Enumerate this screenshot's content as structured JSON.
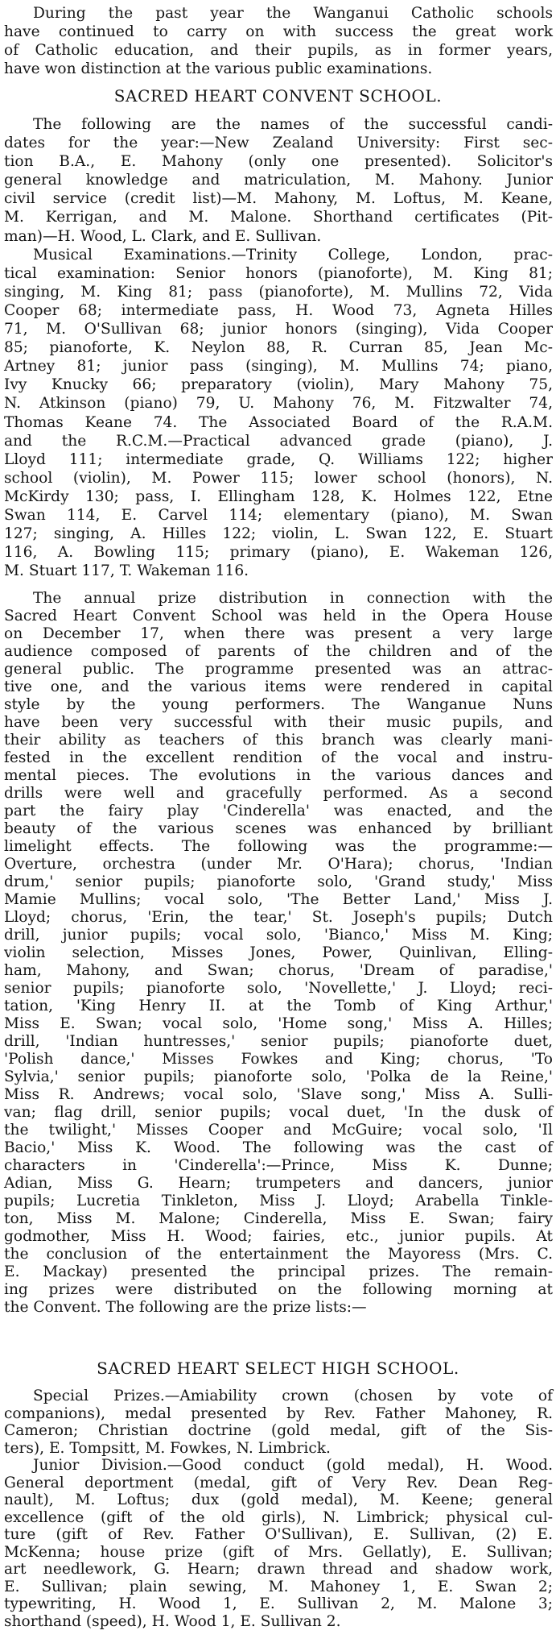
{
  "article": {
    "intro": [
      "During the past year the Wanganui Catholic schools",
      "have continued to carry on with success the great work",
      "of Catholic education, and their pupils, as in former years,",
      "have won distinction at the various public examinations."
    ],
    "heading_convent": "SACRED HEART CONVENT SCHOOL.",
    "candidates": [
      "The following are the names of the successful candi-",
      "dates for the year:—New Zealand University: First sec-",
      "tion B.A., E. Mahony (only one presented). Solicitor's",
      "general knowledge and matriculation, M. Mahony. Junior",
      "civil service (credit list)—M. Mahony, M. Loftus, M. Keane,",
      "M. Kerrigan, and M. Malone. Shorthand certificates (Pit-",
      "man)—H. Wood, L. Clark, and E. Sullivan."
    ],
    "musical": [
      "Musical Examinations.—Trinity College, London, prac-",
      "tical examination: Senior honors (pianoforte), M. King 81;",
      "singing, M. King 81; pass (pianoforte), M. Mullins 72, Vida",
      "Cooper 68; intermediate pass, H. Wood 73, Agneta Hilles",
      "71, M. O'Sullivan 68; junior honors (singing), Vida Cooper",
      "85; pianoforte, K. Neylon 88, R. Curran 85, Jean Mc-",
      "Artney 81; junior pass (singing), M. Mullins 74; piano,",
      "Ivy Knucky 66; preparatory (violin), Mary Mahony 75,",
      "N. Atkinson (piano) 79, U. Mahony 76, M. Fitzwalter 74,",
      "Thomas Keane 74. The Associated Board of the R.A.M.",
      "and the R.C.M.—Practical advanced grade (piano), J.",
      "Lloyd 111; intermediate grade, Q. Williams 122; higher",
      "school (violin), M. Power 115; lower school (honors), N.",
      "McKirdy 130; pass, I. Ellingham 128, K. Holmes 122, Etne",
      "Swan 114, E. Carvel 114; elementary (piano), M. Swan",
      "127; singing, A. Hilles 122; violin, L. Swan 122, E. Stuart",
      "116, A. Bowling 115; primary (piano), E. Wakeman 126,",
      "M. Stuart 117, T. Wakeman 116."
    ],
    "prize_distribution": [
      "The annual prize distribution in connection with the",
      "Sacred Heart Convent School was held in the Opera House",
      "on December 17, when there was present a very large",
      "audience composed of parents of the children and of the",
      "general public. The programme presented was an attrac-",
      "tive one, and the various items were rendered in capital",
      "style by the young performers. The Wanganue Nuns",
      "have been very successful with their music pupils, and",
      "their ability as teachers of this branch was clearly mani-",
      "fested in the excellent rendition of the vocal and instru-",
      "mental pieces. The evolutions in the various dances and",
      "drills were well and gracefully performed. As a second",
      "part the fairy play 'Cinderella' was enacted, and the",
      "beauty of the various scenes was enhanced by brilliant",
      "limelight effects. The following was the programme:—",
      "Overture, orchestra (under Mr. O'Hara); chorus, 'Indian",
      "drum,' senior pupils; pianoforte solo, 'Grand study,' Miss",
      "Mamie Mullins; vocal solo, 'The Better Land,' Miss J.",
      "Lloyd; chorus, 'Erin, the tear,' St. Joseph's pupils; Dutch",
      "drill, junior pupils; vocal solo, 'Bianco,' Miss M. King;",
      "violin selection, Misses Jones, Power, Quinlivan, Elling-",
      "ham, Mahony, and Swan; chorus, 'Dream of paradise,'",
      "senior pupils; pianoforte solo, 'Novellette,' J. Lloyd; reci-",
      "tation, 'King Henry II. at the Tomb of King Arthur,'",
      "Miss E. Swan; vocal solo, 'Home song,' Miss A. Hilles;",
      "drill, 'Indian huntresses,' senior pupils; pianoforte duet,",
      "'Polish dance,' Misses Fowkes and King; chorus, 'To",
      "Sylvia,' senior pupils; pianoforte solo, 'Polka de la Reine,'",
      "Miss R. Andrews; vocal solo, 'Slave song,' Miss A. Sulli-",
      "van; flag drill, senior pupils; vocal duet, 'In the dusk of",
      "the twilight,' Misses Cooper and McGuire; vocal solo, 'Il",
      "Bacio,' Miss K. Wood. The following was the cast of",
      "characters in 'Cinderella':—Prince, Miss K. Dunne;",
      "Adian, Miss G. Hearn; trumpeters and dancers, junior",
      "pupils; Lucretia Tinkleton, Miss J. Lloyd; Arabella Tinkle-",
      "ton, Miss M. Malone; Cinderella, Miss E. Swan; fairy",
      "godmother, Miss H. Wood; fairies, etc., junior pupils. At",
      "the conclusion of the entertainment the Mayoress (Mrs. C.",
      "E. Mackay) presented the principal prizes. The remain-",
      "ing prizes were distributed on the following morning at",
      "the Convent. The following are the prize lists:—"
    ],
    "heading_high_school": "SACRED HEART SELECT HIGH SCHOOL.",
    "special_prizes": [
      "Special Prizes.—Amiability crown (chosen by vote of",
      "companions), medal presented by Rev. Father Mahoney, R.",
      "Cameron; Christian doctrine (gold medal, gift of the Sis-",
      "ters), E. Tompsitt, M. Fowkes, N. Limbrick."
    ],
    "junior_division": [
      "Junior Division.—Good conduct (gold medal), H. Wood.",
      "General deportment (medal, gift of Very Rev. Dean Reg-",
      "nault), M. Loftus; dux (gold medal), M. Keene; general",
      "excellence (gift of the old girls), N. Limbrick; physical cul-",
      "ture (gift of Rev. Father O'Sullivan), E. Sullivan, (2) E.",
      "McKenna; house prize (gift of Mrs. Gellatly), E. Sullivan;",
      "art needlework, G. Hearn; drawn thread and shadow work,",
      "E. Sullivan; plain sewing, M. Mahoney 1, E. Swan 2;",
      "typewriting, H. Wood 1, E. Sullivan 2, M. Malone 3;",
      "shorthand (speed), H. Wood 1, E. Sullivan 2."
    ]
  }
}
